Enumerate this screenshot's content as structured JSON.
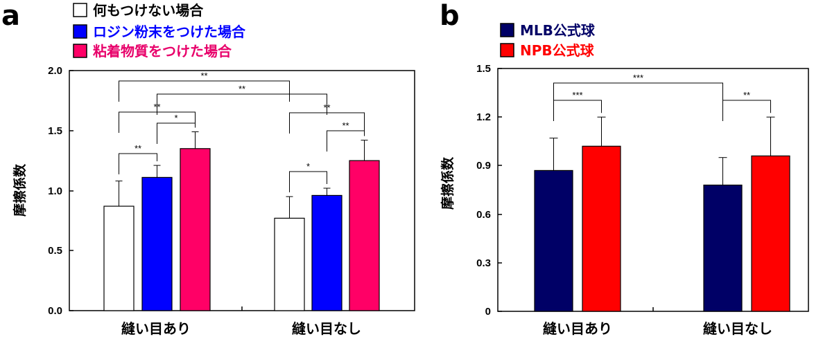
{
  "colors": {
    "none": "#ffffff",
    "rosin": "#0000ff",
    "sticky": "#ff0066",
    "mlb": "#000066",
    "npb": "#ff0000",
    "legend_rosin_text": "#0000ff",
    "legend_sticky_text": "#e8006a",
    "legend_mlb_text": "#000066",
    "legend_npb_text": "#ff0000"
  },
  "chart_data": [
    {
      "panel": "a",
      "type": "bar",
      "ylabel": "摩擦係数",
      "ylim": [
        0,
        2.0
      ],
      "yticks": [
        "0.0",
        "0.5",
        "1.0",
        "1.5",
        "2.0"
      ],
      "categories": [
        "縫い目あり",
        "縫い目なし"
      ],
      "legend_position": "top-left",
      "series": [
        {
          "name": "何もつけない場合",
          "color_key": "none",
          "values": [
            0.87,
            0.77
          ],
          "errors": [
            0.21,
            0.18
          ]
        },
        {
          "name": "ロジン粉末をつけた場合",
          "color_key": "rosin",
          "values": [
            1.11,
            0.96
          ],
          "errors": [
            0.1,
            0.06
          ]
        },
        {
          "name": "粘着物質をつけた場合",
          "color_key": "sticky",
          "values": [
            1.35,
            1.25
          ],
          "errors": [
            0.14,
            0.17
          ]
        }
      ],
      "significance": [
        {
          "label": "**",
          "from": [
            0,
            0
          ],
          "to": [
            0,
            1
          ]
        },
        {
          "label": "*",
          "from": [
            0,
            1
          ],
          "to": [
            0,
            2
          ]
        },
        {
          "label": "**",
          "from": [
            0,
            0
          ],
          "to": [
            0,
            2
          ]
        },
        {
          "label": "*",
          "from": [
            1,
            0
          ],
          "to": [
            1,
            1
          ]
        },
        {
          "label": "**",
          "from": [
            1,
            1
          ],
          "to": [
            1,
            2
          ]
        },
        {
          "label": "**",
          "from": [
            1,
            0
          ],
          "to": [
            1,
            2
          ]
        },
        {
          "label": "**",
          "from": [
            0,
            0
          ],
          "to": [
            1,
            0
          ]
        },
        {
          "label": "**",
          "from": [
            0,
            1
          ],
          "to": [
            1,
            1
          ]
        }
      ]
    },
    {
      "panel": "b",
      "type": "bar",
      "ylabel": "摩擦係数",
      "ylim": [
        0,
        1.5
      ],
      "yticks": [
        "0",
        "0.3",
        "0.6",
        "0.9",
        "1.2",
        "1.5"
      ],
      "categories": [
        "縫い目あり",
        "縫い目なし"
      ],
      "legend_position": "top-left",
      "series": [
        {
          "name": "MLB公式球",
          "color_key": "mlb",
          "values": [
            0.87,
            0.78
          ],
          "errors": [
            0.2,
            0.17
          ]
        },
        {
          "name": "NPB公式球",
          "color_key": "npb",
          "values": [
            1.02,
            0.96
          ],
          "errors": [
            0.18,
            0.24
          ]
        }
      ],
      "significance": [
        {
          "label": "***",
          "from": [
            0,
            0
          ],
          "to": [
            0,
            1
          ]
        },
        {
          "label": "**",
          "from": [
            1,
            0
          ],
          "to": [
            1,
            1
          ]
        },
        {
          "label": "***",
          "from": [
            0,
            0
          ],
          "to": [
            1,
            0
          ]
        }
      ]
    }
  ]
}
